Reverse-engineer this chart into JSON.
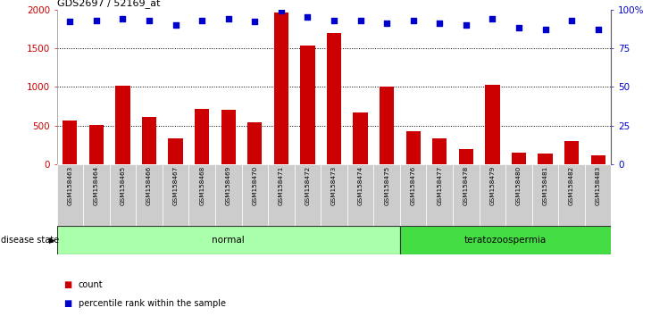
{
  "title": "GDS2697 / 52169_at",
  "samples": [
    "GSM158463",
    "GSM158464",
    "GSM158465",
    "GSM158466",
    "GSM158467",
    "GSM158468",
    "GSM158469",
    "GSM158470",
    "GSM158471",
    "GSM158472",
    "GSM158473",
    "GSM158474",
    "GSM158475",
    "GSM158476",
    "GSM158477",
    "GSM158478",
    "GSM158479",
    "GSM158480",
    "GSM158481",
    "GSM158482",
    "GSM158483"
  ],
  "counts": [
    570,
    510,
    1020,
    610,
    340,
    720,
    710,
    540,
    1960,
    1540,
    1700,
    670,
    1000,
    430,
    340,
    200,
    1030,
    155,
    145,
    295,
    120
  ],
  "percentiles": [
    92,
    93,
    94,
    93,
    90,
    93,
    94,
    92,
    99,
    95,
    93,
    93,
    91,
    93,
    91,
    90,
    94,
    88,
    87,
    93,
    87
  ],
  "groups": [
    {
      "label": "normal",
      "start": 0,
      "end": 13,
      "color": "#aaffaa"
    },
    {
      "label": "teratozoospermia",
      "start": 13,
      "end": 21,
      "color": "#44dd44"
    }
  ],
  "bar_color": "#cc0000",
  "dot_color": "#0000cc",
  "ylim_left": [
    0,
    2000
  ],
  "ylim_right": [
    0,
    100
  ],
  "yticks_left": [
    0,
    500,
    1000,
    1500,
    2000
  ],
  "yticks_right": [
    0,
    25,
    50,
    75,
    100
  ],
  "ytick_labels_right": [
    "0",
    "25",
    "50",
    "75",
    "100%"
  ],
  "plot_bg_color": "#ffffff",
  "tick_bg_color": "#cccccc",
  "label_count": "count",
  "label_percentile": "percentile rank within the sample",
  "disease_state_label": "disease state"
}
